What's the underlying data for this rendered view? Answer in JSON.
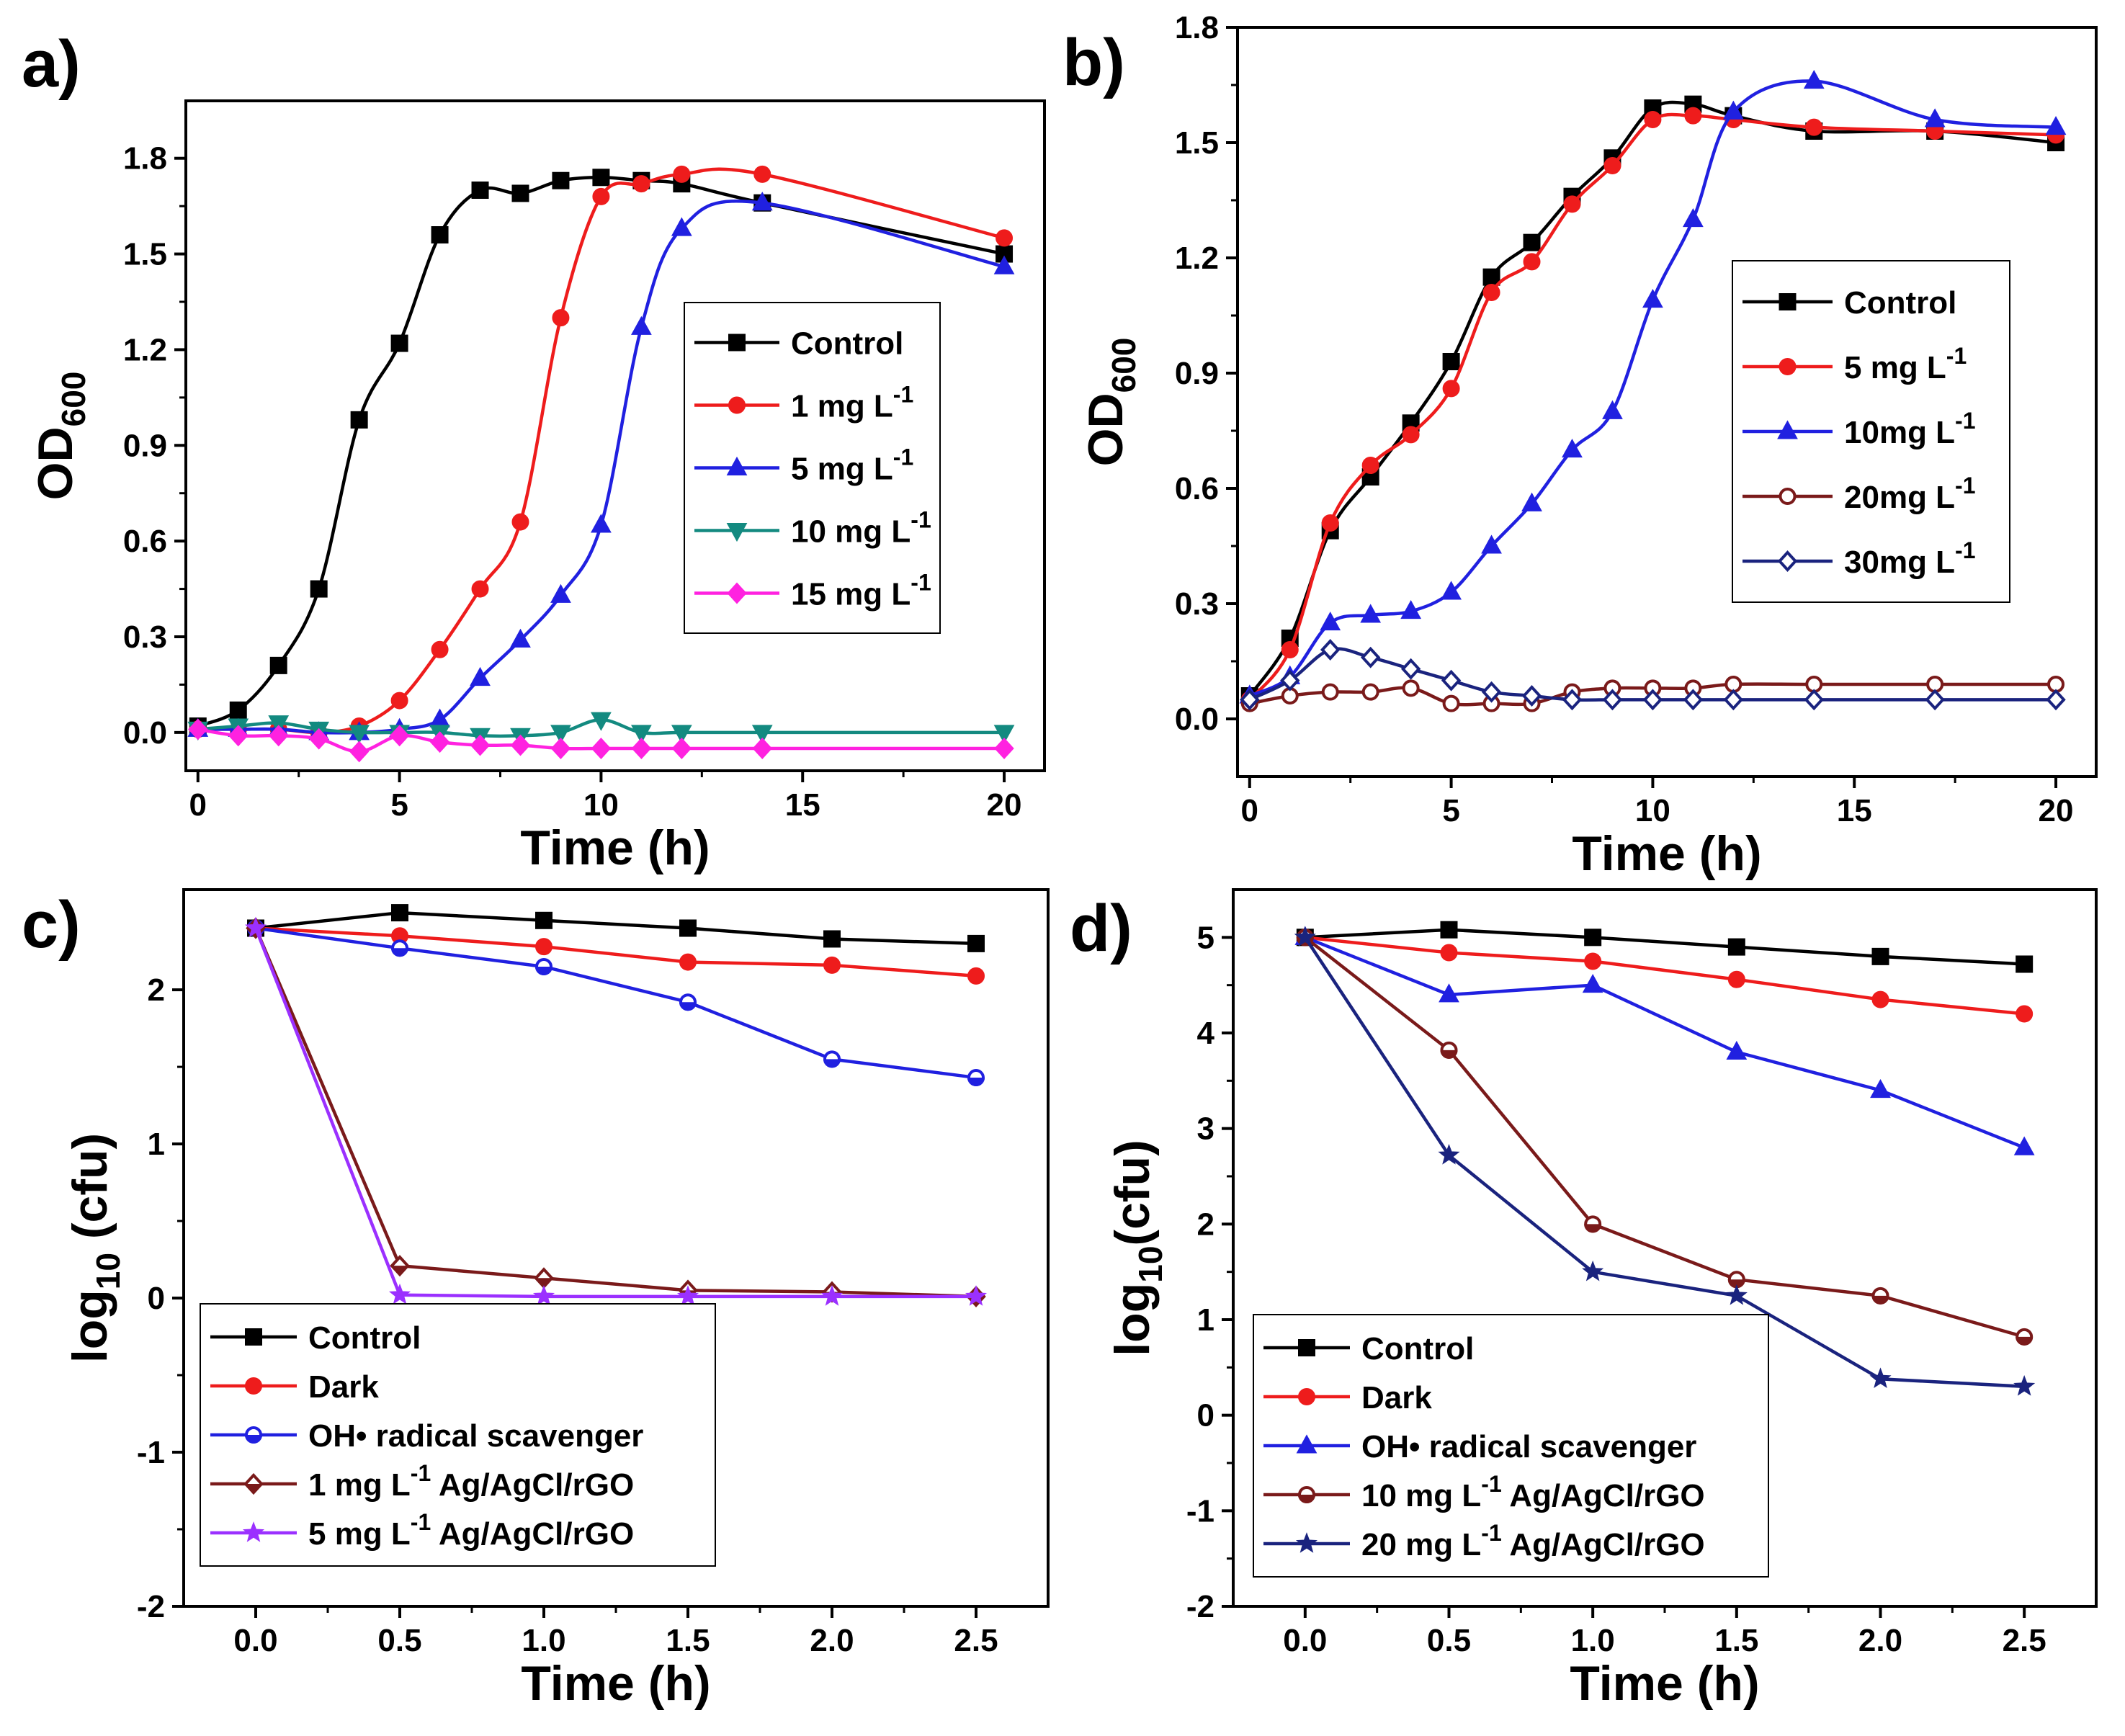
{
  "chart_data": [
    {
      "type": "line",
      "panel_label": "a)",
      "xlabel": "Time (h)",
      "ylabel": "OD",
      "ylabel_sub": "600",
      "xlim": [
        -0.3,
        21
      ],
      "ylim": [
        -0.12,
        1.98
      ],
      "xticks": [
        0,
        5,
        10,
        15,
        20
      ],
      "yticks": [
        0.0,
        0.3,
        0.6,
        0.9,
        1.2,
        1.5,
        1.8
      ],
      "xtick_labels": [
        "0",
        "5",
        "10",
        "15",
        "20"
      ],
      "ytick_labels": [
        "0.0",
        "0.3",
        "0.6",
        "0.9",
        "1.2",
        "1.5",
        "1.8"
      ],
      "legend_position": "center-right",
      "smooth": true,
      "series": [
        {
          "name": "Control",
          "unit": "",
          "marker": "square",
          "color": "#000000",
          "fill": "filled",
          "x": [
            0,
            1,
            2,
            3,
            4,
            5,
            6,
            7,
            8,
            9,
            10,
            11,
            12,
            14,
            20
          ],
          "y": [
            0.02,
            0.07,
            0.21,
            0.45,
            0.98,
            1.22,
            1.56,
            1.7,
            1.69,
            1.73,
            1.74,
            1.73,
            1.72,
            1.66,
            1.5
          ]
        },
        {
          "name": "1 mg L",
          "unit": "-1",
          "marker": "circle",
          "color": "#ee1c1c",
          "fill": "filled",
          "x": [
            0,
            1,
            2,
            3,
            4,
            5,
            6,
            7,
            8,
            9,
            10,
            11,
            12,
            14,
            20
          ],
          "y": [
            0.01,
            0.01,
            0.01,
            0.0,
            0.02,
            0.1,
            0.26,
            0.45,
            0.66,
            1.3,
            1.68,
            1.72,
            1.75,
            1.75,
            1.55
          ]
        },
        {
          "name": "5 mg L",
          "unit": "-1",
          "marker": "triangle-up",
          "color": "#2020e0",
          "fill": "filled",
          "x": [
            0,
            1,
            2,
            3,
            4,
            5,
            6,
            7,
            8,
            9,
            10,
            11,
            12,
            14,
            20
          ],
          "y": [
            0.01,
            0.01,
            0.01,
            0.0,
            0.0,
            0.01,
            0.04,
            0.17,
            0.29,
            0.43,
            0.65,
            1.27,
            1.58,
            1.66,
            1.46
          ]
        },
        {
          "name": "10 mg L",
          "unit": "-1",
          "marker": "triangle-down",
          "color": "#138a80",
          "fill": "filled",
          "x": [
            0,
            1,
            2,
            3,
            4,
            5,
            6,
            7,
            8,
            9,
            10,
            11,
            12,
            14,
            20
          ],
          "y": [
            0.01,
            0.02,
            0.03,
            0.01,
            0.0,
            0.0,
            0.0,
            -0.01,
            -0.01,
            0.0,
            0.04,
            0.0,
            0.0,
            0.0,
            0.0
          ]
        },
        {
          "name": "15 mg L",
          "unit": "-1",
          "marker": "diamond",
          "color": "#ff22e0",
          "fill": "filled",
          "x": [
            0,
            1,
            2,
            3,
            4,
            5,
            6,
            7,
            8,
            9,
            10,
            11,
            12,
            14,
            20
          ],
          "y": [
            0.01,
            -0.01,
            -0.01,
            -0.02,
            -0.06,
            -0.01,
            -0.03,
            -0.04,
            -0.04,
            -0.05,
            -0.05,
            -0.05,
            -0.05,
            -0.05,
            -0.05
          ]
        }
      ]
    },
    {
      "type": "line",
      "panel_label": "b)",
      "xlabel": "Time (h)",
      "ylabel": "OD",
      "ylabel_sub": "600",
      "xlim": [
        -0.3,
        21
      ],
      "ylim": [
        -0.15,
        1.8
      ],
      "xticks": [
        0,
        5,
        10,
        15,
        20
      ],
      "yticks": [
        0.0,
        0.3,
        0.6,
        0.9,
        1.2,
        1.5,
        1.8
      ],
      "xtick_labels": [
        "0",
        "5",
        "10",
        "15",
        "20"
      ],
      "ytick_labels": [
        "0.0",
        "0.3",
        "0.6",
        "0.9",
        "1.2",
        "1.5",
        "1.8"
      ],
      "legend_position": "center-right",
      "smooth": true,
      "series": [
        {
          "name": "Control",
          "unit": "",
          "marker": "square",
          "color": "#000000",
          "fill": "filled",
          "x": [
            0,
            1,
            2,
            3,
            4,
            5,
            6,
            7,
            8,
            9,
            10,
            11,
            12,
            14,
            17,
            20
          ],
          "y": [
            0.06,
            0.21,
            0.49,
            0.63,
            0.77,
            0.93,
            1.15,
            1.24,
            1.36,
            1.46,
            1.59,
            1.6,
            1.57,
            1.53,
            1.53,
            1.5
          ]
        },
        {
          "name": "5 mg L",
          "unit": "-1",
          "marker": "circle",
          "color": "#ee1c1c",
          "fill": "filled",
          "x": [
            0,
            1,
            2,
            3,
            4,
            5,
            6,
            7,
            8,
            9,
            10,
            11,
            12,
            14,
            17,
            20
          ],
          "y": [
            0.05,
            0.18,
            0.51,
            0.66,
            0.74,
            0.86,
            1.11,
            1.19,
            1.34,
            1.44,
            1.56,
            1.57,
            1.56,
            1.54,
            1.53,
            1.52
          ]
        },
        {
          "name": "10mg L",
          "unit": "-1",
          "marker": "triangle-up",
          "color": "#2020e0",
          "fill": "filled",
          "x": [
            0,
            1,
            2,
            3,
            4,
            5,
            6,
            7,
            8,
            9,
            10,
            11,
            12,
            14,
            17,
            20
          ],
          "y": [
            0.06,
            0.11,
            0.25,
            0.27,
            0.28,
            0.33,
            0.45,
            0.56,
            0.7,
            0.8,
            1.09,
            1.3,
            1.58,
            1.66,
            1.56,
            1.54
          ]
        },
        {
          "name": "20mg L",
          "unit": "-1",
          "marker": "circle",
          "color": "#7a1a1a",
          "fill": "open",
          "x": [
            0,
            1,
            2,
            3,
            4,
            5,
            6,
            7,
            8,
            9,
            10,
            11,
            12,
            14,
            17,
            20
          ],
          "y": [
            0.04,
            0.06,
            0.07,
            0.07,
            0.08,
            0.04,
            0.04,
            0.04,
            0.07,
            0.08,
            0.08,
            0.08,
            0.09,
            0.09,
            0.09,
            0.09
          ]
        },
        {
          "name": "30mg L",
          "unit": "-1",
          "marker": "diamond",
          "color": "#1a237e",
          "fill": "open",
          "x": [
            0,
            1,
            2,
            3,
            4,
            5,
            6,
            7,
            8,
            9,
            10,
            11,
            12,
            14,
            17,
            20
          ],
          "y": [
            0.05,
            0.1,
            0.18,
            0.16,
            0.13,
            0.1,
            0.07,
            0.06,
            0.05,
            0.05,
            0.05,
            0.05,
            0.05,
            0.05,
            0.05,
            0.05
          ]
        }
      ]
    },
    {
      "type": "line",
      "panel_label": "c)",
      "xlabel": "Time (h)",
      "ylabel": "log",
      "ylabel_sub": "10",
      "ylabel_rest": " (cfu)",
      "xlim": [
        -0.25,
        2.75
      ],
      "ylim": [
        -2.0,
        2.65
      ],
      "xticks": [
        0.0,
        0.5,
        1.0,
        1.5,
        2.0,
        2.5
      ],
      "yticks": [
        -2,
        -1,
        0,
        1,
        2
      ],
      "xtick_labels": [
        "0.0",
        "0.5",
        "1.0",
        "1.5",
        "2.0",
        "2.5"
      ],
      "ytick_labels": [
        "-2",
        "-1",
        "0",
        "1",
        "2"
      ],
      "legend_position": "bottom-left",
      "smooth": false,
      "series": [
        {
          "name": "Control",
          "unit": "",
          "suffix": "",
          "marker": "square",
          "color": "#000000",
          "fill": "filled",
          "x": [
            0.0,
            0.5,
            1.0,
            1.5,
            2.0,
            2.5
          ],
          "y": [
            2.4,
            2.5,
            2.45,
            2.4,
            2.33,
            2.3
          ]
        },
        {
          "name": "Dark",
          "unit": "",
          "suffix": "",
          "marker": "circle",
          "color": "#ee1c1c",
          "fill": "filled",
          "x": [
            0.0,
            0.5,
            1.0,
            1.5,
            2.0,
            2.5
          ],
          "y": [
            2.4,
            2.35,
            2.28,
            2.18,
            2.16,
            2.09
          ]
        },
        {
          "name": "OH• radical scavenger",
          "unit": "",
          "suffix": "",
          "marker": "circle",
          "color": "#2020e0",
          "fill": "half",
          "x": [
            0.0,
            0.5,
            1.0,
            1.5,
            2.0,
            2.5
          ],
          "y": [
            2.4,
            2.27,
            2.15,
            1.92,
            1.55,
            1.43
          ]
        },
        {
          "name": "1 mg L",
          "unit": "-1",
          "suffix": " Ag/AgCl/rGO",
          "marker": "diamond",
          "color": "#7a1a1a",
          "fill": "half",
          "x": [
            0.0,
            0.5,
            1.0,
            1.5,
            2.0,
            2.5
          ],
          "y": [
            2.4,
            0.21,
            0.13,
            0.05,
            0.04,
            0.01
          ]
        },
        {
          "name": "5 mg L",
          "unit": "-1",
          "suffix": " Ag/AgCl/rGO",
          "marker": "star",
          "color": "#9b30ff",
          "fill": "filled",
          "x": [
            0.0,
            0.5,
            1.0,
            1.5,
            2.0,
            2.5
          ],
          "y": [
            2.4,
            0.02,
            0.01,
            0.01,
            0.01,
            0.01
          ]
        }
      ]
    },
    {
      "type": "line",
      "panel_label": "d)",
      "xlabel": "Time (h)",
      "ylabel": "log",
      "ylabel_sub": "10",
      "ylabel_rest": "(cfu)",
      "xlim": [
        -0.25,
        2.75
      ],
      "ylim": [
        -2.0,
        5.5
      ],
      "xticks": [
        0.0,
        0.5,
        1.0,
        1.5,
        2.0,
        2.5
      ],
      "yticks": [
        -2,
        -1,
        0,
        1,
        2,
        3,
        4,
        5
      ],
      "xtick_labels": [
        "0.0",
        "0.5",
        "1.0",
        "1.5",
        "2.0",
        "2.5"
      ],
      "ytick_labels": [
        "-2",
        "-1",
        "0",
        "1",
        "2",
        "3",
        "4",
        "5"
      ],
      "legend_position": "bottom-left",
      "smooth": false,
      "series": [
        {
          "name": "Control",
          "unit": "",
          "suffix": "",
          "marker": "square",
          "color": "#000000",
          "fill": "filled",
          "x": [
            0.0,
            0.5,
            1.0,
            1.5,
            2.0,
            2.5
          ],
          "y": [
            5.0,
            5.08,
            5.0,
            4.9,
            4.8,
            4.72
          ]
        },
        {
          "name": "Dark",
          "unit": "",
          "suffix": "",
          "marker": "circle",
          "color": "#ee1c1c",
          "fill": "filled",
          "x": [
            0.0,
            0.5,
            1.0,
            1.5,
            2.0,
            2.5
          ],
          "y": [
            5.0,
            4.84,
            4.75,
            4.56,
            4.35,
            4.2
          ]
        },
        {
          "name": "OH• radical scavenger",
          "unit": "",
          "suffix": "",
          "marker": "triangle-up",
          "color": "#2020e0",
          "fill": "filled",
          "x": [
            0.0,
            0.5,
            1.0,
            1.5,
            2.0,
            2.5
          ],
          "y": [
            5.0,
            4.4,
            4.5,
            3.8,
            3.4,
            2.8
          ]
        },
        {
          "name": "10 mg L",
          "unit": "-1",
          "suffix": " Ag/AgCl/rGO",
          "marker": "circle",
          "color": "#7a1a1a",
          "fill": "half",
          "x": [
            0.0,
            0.5,
            1.0,
            1.5,
            2.0,
            2.5
          ],
          "y": [
            5.0,
            3.82,
            2.0,
            1.42,
            1.25,
            0.82
          ]
        },
        {
          "name": "20 mg L",
          "unit": "-1",
          "suffix": " Ag/AgCl/rGO",
          "marker": "star",
          "color": "#1a237e",
          "fill": "filled",
          "x": [
            0.0,
            0.5,
            1.0,
            1.5,
            2.0,
            2.5
          ],
          "y": [
            5.0,
            2.72,
            1.5,
            1.25,
            0.38,
            0.3
          ]
        }
      ]
    }
  ]
}
